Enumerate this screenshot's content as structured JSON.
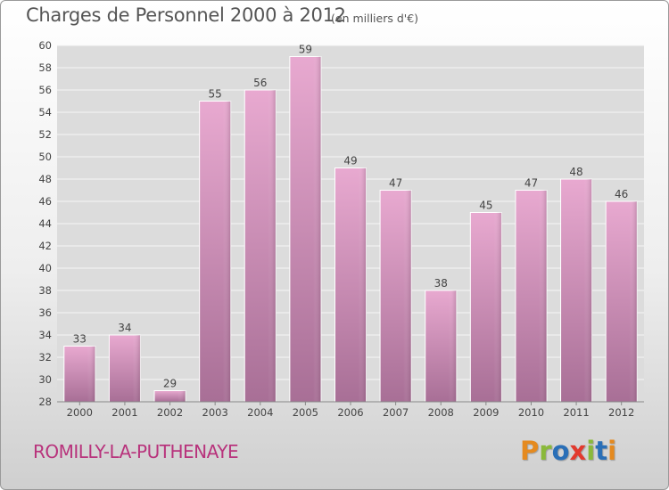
{
  "header": {
    "title": "Charges de Personnel 2000 à 2012",
    "subtitle": "(en milliers d'€)"
  },
  "footer": {
    "commune": "ROMILLY-LA-PUTHENAYE",
    "logo_letters": [
      "P",
      "r",
      "o",
      "x",
      "i",
      "t",
      "i"
    ],
    "logo_colors": [
      "#e58a1f",
      "#8ab93a",
      "#2a6fb7",
      "#e23a2e",
      "#8ab93a",
      "#2a6fb7",
      "#e58a1f"
    ]
  },
  "chart_data": {
    "type": "bar",
    "title": "Charges de Personnel 2000 à 2012",
    "subtitle": "(en milliers d'€)",
    "categories": [
      "2000",
      "2001",
      "2002",
      "2003",
      "2004",
      "2005",
      "2006",
      "2007",
      "2008",
      "2009",
      "2010",
      "2011",
      "2012"
    ],
    "values": [
      33,
      34,
      29,
      55,
      56,
      59,
      49,
      47,
      38,
      45,
      47,
      48,
      46
    ],
    "value_labels": [
      "33",
      "34",
      "29",
      "55",
      "56",
      "59",
      "49",
      "47",
      "38",
      "45",
      "47",
      "48",
      "46"
    ],
    "ylim": [
      28,
      60
    ],
    "yticks": [
      28,
      30,
      32,
      34,
      36,
      38,
      40,
      42,
      44,
      46,
      48,
      50,
      52,
      54,
      56,
      58,
      60
    ],
    "ytick_labels": [
      "28",
      "30",
      "32",
      "34",
      "36",
      "38",
      "40",
      "42",
      "44",
      "46",
      "48",
      "50",
      "52",
      "54",
      "56",
      "58",
      "60"
    ],
    "grid": true,
    "legend": "none",
    "bar_color_top": "#e8a9d0",
    "bar_color_bottom": "#a86f96",
    "plot_background": "#dcdcdc",
    "grid_color": "#f6f6f6"
  }
}
